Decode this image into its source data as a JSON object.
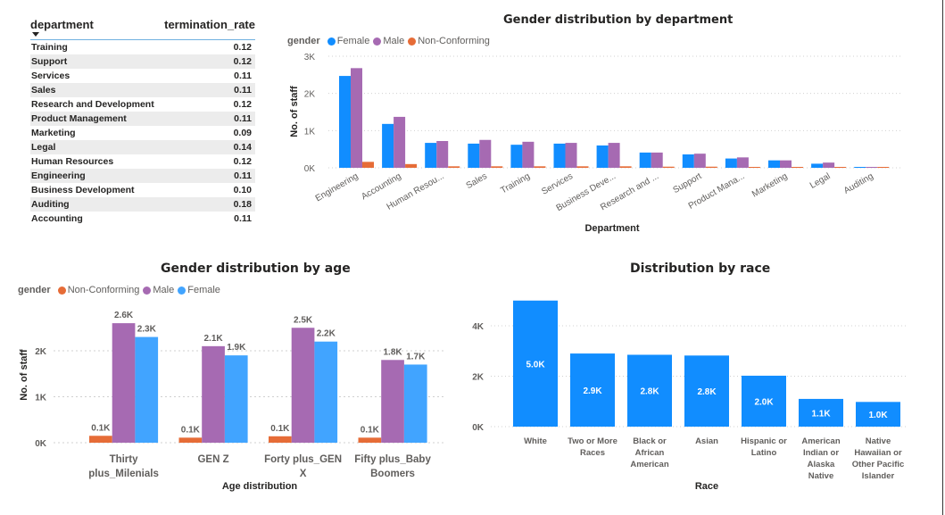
{
  "table": {
    "columns": [
      "department",
      "termination_rate"
    ],
    "rows": [
      [
        "Training",
        "0.12"
      ],
      [
        "Support",
        "0.12"
      ],
      [
        "Services",
        "0.11"
      ],
      [
        "Sales",
        "0.11"
      ],
      [
        "Research and Development",
        "0.12"
      ],
      [
        "Product Management",
        "0.11"
      ],
      [
        "Marketing",
        "0.09"
      ],
      [
        "Legal",
        "0.14"
      ],
      [
        "Human Resources",
        "0.12"
      ],
      [
        "Engineering",
        "0.11"
      ],
      [
        "Business Development",
        "0.10"
      ],
      [
        "Auditing",
        "0.18"
      ],
      [
        "Accounting",
        "0.11"
      ]
    ]
  },
  "colors": {
    "female_dept": "#118DFF",
    "female_age": "#41A4FF",
    "male": "#A66AB2",
    "non_conforming": "#E66C37",
    "race_bar": "#118DFF"
  },
  "chart_data": [
    {
      "type": "bar",
      "title": "Gender distribution by department",
      "legend_title": "gender",
      "legend_position": "top-left",
      "xlabel": "Department",
      "ylabel": "No. of staff",
      "ylim": [
        0,
        3000
      ],
      "yticks": [
        "0K",
        "1K",
        "2K",
        "3K"
      ],
      "grid": true,
      "categories": [
        "Engineering",
        "Accounting",
        "Human Resources",
        "Sales",
        "Training",
        "Services",
        "Business Development",
        "Research and Development",
        "Support",
        "Product Management",
        "Marketing",
        "Legal",
        "Auditing"
      ],
      "tick_labels": [
        "Engineering",
        "Accounting",
        "Human Resou...",
        "Sales",
        "Training",
        "Services",
        "Business Deve...",
        "Research and ...",
        "Support",
        "Product Mana...",
        "Marketing",
        "Legal",
        "Auditing"
      ],
      "series": [
        {
          "name": "Female",
          "color_key": "female_dept",
          "values": [
            2470,
            1180,
            670,
            650,
            620,
            650,
            600,
            410,
            360,
            250,
            200,
            110,
            20
          ]
        },
        {
          "name": "Male",
          "color_key": "male",
          "values": [
            2680,
            1370,
            720,
            750,
            700,
            670,
            670,
            410,
            380,
            280,
            200,
            140,
            20
          ]
        },
        {
          "name": "Non-Conforming",
          "color_key": "non_conforming",
          "values": [
            160,
            100,
            40,
            40,
            40,
            40,
            40,
            30,
            30,
            15,
            10,
            10,
            3
          ]
        }
      ]
    },
    {
      "type": "bar",
      "title": "Gender distribution by age",
      "legend_title": "gender",
      "legend_position": "top-left",
      "xlabel": "Age distribution",
      "ylabel": "No. of staff",
      "ylim": [
        0,
        2600
      ],
      "yticks": [
        "0K",
        "1K",
        "2K"
      ],
      "grid": true,
      "categories": [
        "Thirty plus_Milenials",
        "GEN Z",
        "Forty plus_GEN X",
        "Fifty plus_Baby Boomers"
      ],
      "tick_labels": [
        [
          "Thirty",
          "plus_Milenials"
        ],
        [
          "GEN Z"
        ],
        [
          "Forty plus_GEN",
          "X"
        ],
        [
          "Fifty plus_Baby",
          "Boomers"
        ]
      ],
      "series": [
        {
          "name": "Non-Conforming",
          "color_key": "non_conforming",
          "values": [
            150,
            110,
            140,
            110
          ],
          "labels": [
            "0.1K",
            "0.1K",
            "0.1K",
            "0.1K"
          ]
        },
        {
          "name": "Male",
          "color_key": "male",
          "values": [
            2600,
            2100,
            2500,
            1800
          ],
          "labels": [
            "2.6K",
            "2.1K",
            "2.5K",
            "1.8K"
          ]
        },
        {
          "name": "Female",
          "color_key": "female_age",
          "values": [
            2300,
            1900,
            2200,
            1700
          ],
          "labels": [
            "2.3K",
            "1.9K",
            "2.2K",
            "1.7K"
          ]
        }
      ]
    },
    {
      "type": "bar",
      "title": "Distribution by race",
      "xlabel": "Race",
      "ylabel": "",
      "ylim": [
        0,
        5000
      ],
      "yticks": [
        "0K",
        "2K",
        "4K"
      ],
      "grid": true,
      "categories": [
        "White",
        "Two or More Races",
        "Black or African American",
        "Asian",
        "Hispanic or Latino",
        "American Indian or Alaska Native",
        "Native Hawaiian or Other Pacific Islander"
      ],
      "tick_labels": [
        [
          "White"
        ],
        [
          "Two or More",
          "Races"
        ],
        [
          "Black or",
          "African",
          "American"
        ],
        [
          "Asian"
        ],
        [
          "Hispanic or",
          "Latino"
        ],
        [
          "American",
          "Indian or",
          "Alaska",
          "Native"
        ],
        [
          "Native",
          "Hawaiian or",
          "Other Pacific",
          "Islander"
        ]
      ],
      "values": [
        5000,
        2900,
        2850,
        2820,
        2020,
        1100,
        980
      ],
      "labels": [
        "5.0K",
        "2.9K",
        "2.8K",
        "2.8K",
        "2.0K",
        "1.1K",
        "1.0K"
      ]
    }
  ]
}
